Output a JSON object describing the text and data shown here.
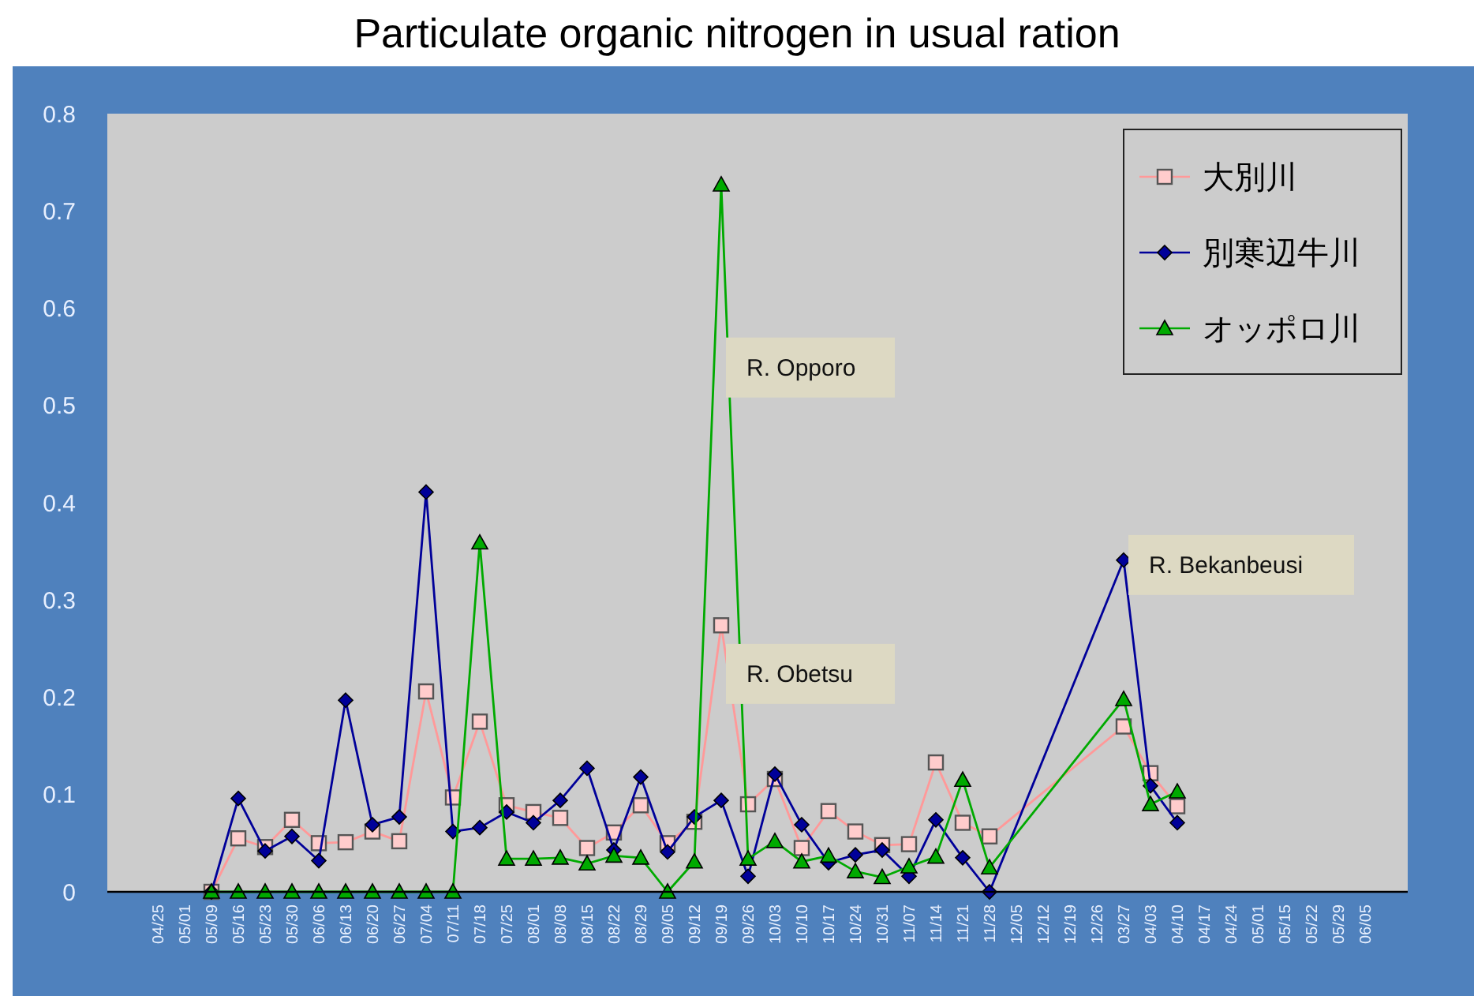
{
  "chart_data": {
    "type": "line",
    "title": "Particulate organic nitrogen in usual ration",
    "categories": [
      "04/25",
      "05/01",
      "05/09",
      "05/16",
      "05/23",
      "05/30",
      "06/06",
      "06/13",
      "06/20",
      "06/27",
      "07/04",
      "07/11",
      "07/18",
      "07/25",
      "08/01",
      "08/08",
      "08/15",
      "08/22",
      "08/29",
      "09/05",
      "09/12",
      "09/19",
      "09/26",
      "10/03",
      "10/10",
      "10/17",
      "10/24",
      "10/31",
      "11/07",
      "11/14",
      "11/21",
      "11/28",
      "12/05",
      "12/12",
      "12/19",
      "12/26",
      "03/27",
      "04/03",
      "04/10",
      "04/17",
      "04/24",
      "05/01",
      "05/15",
      "05/22",
      "05/29",
      "06/05"
    ],
    "series": [
      {
        "name": "大別川",
        "color": "#ff9999",
        "marker": "square",
        "values": [
          null,
          null,
          0,
          0.055,
          0.046,
          0.074,
          0.05,
          0.051,
          0.062,
          0.052,
          0.206,
          0.097,
          0.175,
          0.089,
          0.082,
          0.076,
          0.045,
          0.061,
          0.089,
          0.05,
          0.072,
          0.274,
          0.09,
          0.116,
          0.045,
          0.083,
          0.062,
          0.048,
          0.049,
          0.133,
          0.071,
          0.057,
          null,
          null,
          null,
          null,
          0.17,
          0.122,
          0.088,
          null,
          null,
          null,
          null,
          null,
          null,
          null
        ]
      },
      {
        "name": "別寒辺牛川",
        "color": "#000099",
        "marker": "diamond",
        "values": [
          null,
          null,
          0,
          0.096,
          0.042,
          0.057,
          0.032,
          0.197,
          0.069,
          0.077,
          0.411,
          0.062,
          0.066,
          0.082,
          0.071,
          0.094,
          0.127,
          0.043,
          0.118,
          0.041,
          0.077,
          0.094,
          0.016,
          0.121,
          0.069,
          0.03,
          0.038,
          0.043,
          0.016,
          0.074,
          0.035,
          0,
          null,
          null,
          null,
          null,
          0.341,
          0.109,
          0.071,
          null,
          null,
          null,
          null,
          null,
          null,
          null
        ]
      },
      {
        "name": "オッポロ川",
        "color": "#00aa00",
        "marker": "triangle",
        "values": [
          null,
          null,
          0,
          0,
          0,
          0,
          0,
          0,
          0,
          0,
          0,
          0,
          0.359,
          0.034,
          0.034,
          0.035,
          0.029,
          0.037,
          0.035,
          0,
          0.031,
          0.727,
          0.034,
          0.052,
          0.031,
          0.037,
          0.021,
          0.015,
          0.026,
          0.036,
          0.115,
          0.025,
          null,
          null,
          null,
          null,
          0.198,
          0.09,
          0.103,
          null,
          null,
          null,
          null,
          null,
          null,
          null
        ]
      }
    ],
    "ylim": [
      0,
      0.8
    ],
    "yticks": [
      0,
      0.1,
      0.2,
      0.3,
      0.4,
      0.5,
      0.6,
      0.7,
      0.8
    ],
    "legend": "top right",
    "annotations": [
      {
        "text": "R. Opporo",
        "x": "09/19",
        "y": 0.539
      },
      {
        "text": "R. Obetsu",
        "x": "09/19",
        "y": 0.224
      },
      {
        "text": "R. Bekanbeusi",
        "x": "03/27",
        "y": 0.336
      }
    ]
  }
}
